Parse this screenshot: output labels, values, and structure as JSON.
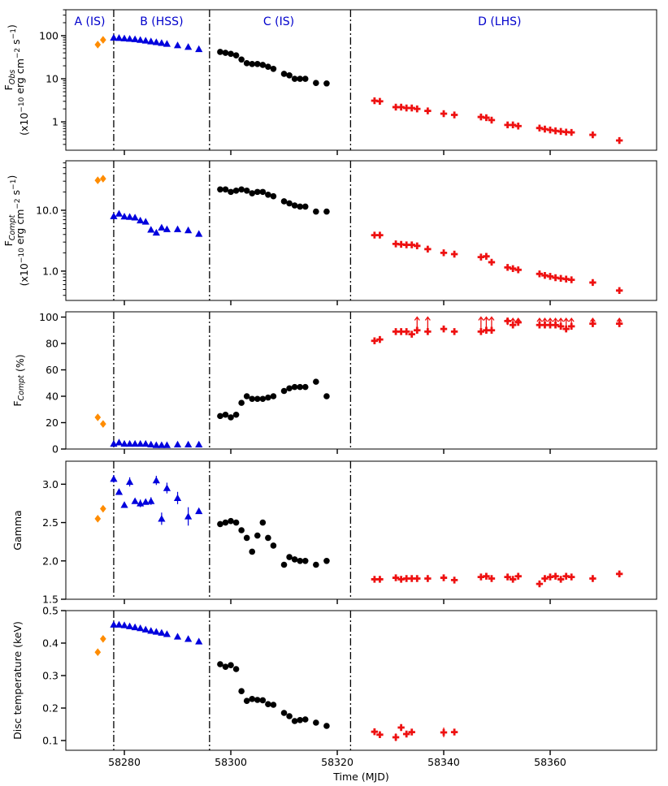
{
  "figure": {
    "xlabel": "Time (MJD)",
    "xlim": [
      58269,
      58380
    ],
    "xticks": [
      58280,
      58300,
      58320,
      58340,
      58360
    ],
    "state_boundaries": [
      58278,
      58296,
      58322.5
    ],
    "state_labels": [
      {
        "text": "A (IS)",
        "x": 58273.5
      },
      {
        "text": "B (HSS)",
        "x": 58287
      },
      {
        "text": "C (IS)",
        "x": 58309
      },
      {
        "text": "D (LHS)",
        "x": 58350.5
      }
    ],
    "colors": {
      "A": "#ff8c00",
      "B": "#0000dd",
      "C": "#000000",
      "D": "#ee1111",
      "label": "#0000cc"
    }
  },
  "chart_data": [
    {
      "id": "fobs",
      "type": "scatter",
      "yscale": "log",
      "ylim": [
        0.22,
        400
      ],
      "ylabel_lines": [
        "F<sub>Obs</sub>",
        "(x10<sup>−10</sup> erg cm<sup>−2</sup> s<sup>−1</sup>)"
      ],
      "ylabel_text": [
        "FObs",
        "(x10−10 erg cm−2 s−1)"
      ],
      "yticks": [
        1,
        10,
        100
      ],
      "yticklabels": [
        "1",
        "10",
        "100"
      ],
      "series": [
        {
          "name": "A (IS)",
          "marker": "diamond",
          "x": [
            58275,
            58276
          ],
          "y": [
            62,
            80
          ]
        },
        {
          "name": "B (HSS)",
          "marker": "triangle",
          "x": [
            58278,
            58279,
            58280,
            58281,
            58282,
            58283,
            58284,
            58285,
            58286,
            58287,
            58288,
            58290,
            58292,
            58294
          ],
          "y": [
            90,
            89,
            87,
            85,
            83,
            80,
            77,
            74,
            71,
            68,
            65,
            60,
            55,
            49
          ]
        },
        {
          "name": "C (IS)",
          "marker": "circle",
          "x": [
            58298,
            58299,
            58300,
            58301,
            58302,
            58303,
            58304,
            58305,
            58306,
            58307,
            58308,
            58310,
            58311,
            58312,
            58313,
            58314,
            58316,
            58318
          ],
          "y": [
            42,
            40,
            38,
            35,
            28,
            23,
            22,
            22,
            21,
            19,
            17,
            13,
            12,
            10,
            10,
            10,
            8,
            7.8
          ]
        },
        {
          "name": "D (LHS)",
          "marker": "plus",
          "x": [
            58327,
            58328,
            58331,
            58332,
            58333,
            58334,
            58335,
            58337,
            58340,
            58342,
            58347,
            58348,
            58349,
            58352,
            58353,
            58354,
            58358,
            58359,
            58360,
            58361,
            58362,
            58363,
            58364,
            58368,
            58373
          ],
          "y": [
            3.1,
            3.0,
            2.2,
            2.2,
            2.1,
            2.1,
            2.0,
            1.8,
            1.55,
            1.45,
            1.3,
            1.25,
            1.1,
            0.85,
            0.85,
            0.8,
            0.72,
            0.68,
            0.65,
            0.62,
            0.6,
            0.58,
            0.57,
            0.5,
            0.37
          ]
        }
      ],
      "yerr": []
    },
    {
      "id": "fcompt",
      "type": "scatter",
      "yscale": "log",
      "ylim": [
        0.33,
        65
      ],
      "ylabel_lines": [
        "F<sub>Compt</sub>",
        "(x10<sup>−10</sup> erg cm<sup>−2</sup> s<sup>−1</sup>)"
      ],
      "ylabel_text": [
        "FCompt",
        "(x10−10 erg cm−2 s−1)"
      ],
      "yticks": [
        1,
        10
      ],
      "yticklabels": [
        "1.0",
        "10.0"
      ],
      "series": [
        {
          "name": "A (IS)",
          "marker": "diamond",
          "x": [
            58275,
            58276
          ],
          "y": [
            31,
            33
          ]
        },
        {
          "name": "B (HSS)",
          "marker": "triangle",
          "x": [
            58278,
            58279,
            58280,
            58281,
            58282,
            58283,
            58284,
            58285,
            58286,
            58287,
            58288,
            58290,
            58292,
            58294
          ],
          "y": [
            8.0,
            8.8,
            7.9,
            7.8,
            7.6,
            6.8,
            6.5,
            4.8,
            4.3,
            5.2,
            4.9,
            4.9,
            4.7,
            4.1
          ]
        },
        {
          "name": "C (IS)",
          "marker": "circle",
          "x": [
            58298,
            58299,
            58300,
            58301,
            58302,
            58303,
            58304,
            58305,
            58306,
            58307,
            58308,
            58310,
            58311,
            58312,
            58313,
            58314,
            58316,
            58318
          ],
          "y": [
            22,
            22,
            20,
            21,
            22,
            21,
            19,
            20,
            20,
            18,
            17,
            14,
            13,
            12,
            11.5,
            11.5,
            9.5,
            9.5
          ]
        },
        {
          "name": "D (LHS)",
          "marker": "plus",
          "x": [
            58327,
            58328,
            58331,
            58332,
            58333,
            58334,
            58335,
            58337,
            58340,
            58342,
            58347,
            58348,
            58349,
            58352,
            58353,
            58354,
            58358,
            58359,
            58360,
            58361,
            58362,
            58363,
            58364,
            58368,
            58373
          ],
          "y": [
            3.9,
            3.9,
            2.8,
            2.75,
            2.7,
            2.7,
            2.6,
            2.3,
            2.0,
            1.9,
            1.7,
            1.75,
            1.4,
            1.15,
            1.1,
            1.05,
            0.9,
            0.85,
            0.82,
            0.78,
            0.76,
            0.74,
            0.72,
            0.65,
            0.48
          ]
        }
      ],
      "yerr": []
    },
    {
      "id": "fcompt_pct",
      "type": "scatter",
      "yscale": "linear",
      "ylim": [
        0,
        104
      ],
      "ylabel_lines": [
        "F<sub>Compt</sub> (%)"
      ],
      "ylabel_text": [
        "FCompt (%)"
      ],
      "yticks": [
        0,
        20,
        40,
        60,
        80,
        100
      ],
      "yticklabels": [
        "0",
        "20",
        "40",
        "60",
        "80",
        "100"
      ],
      "series": [
        {
          "name": "A (IS)",
          "marker": "diamond",
          "x": [
            58275,
            58276
          ],
          "y": [
            24,
            19
          ]
        },
        {
          "name": "B (HSS)",
          "marker": "triangle",
          "x": [
            58278,
            58279,
            58280,
            58281,
            58282,
            58283,
            58284,
            58285,
            58286,
            58287,
            58288,
            58290,
            58292,
            58294
          ],
          "y": [
            4,
            5,
            4,
            4,
            4,
            4,
            4,
            3.5,
            3,
            3,
            3,
            3.5,
            3.5,
            3.5
          ]
        },
        {
          "name": "C (IS)",
          "marker": "circle",
          "x": [
            58298,
            58299,
            58300,
            58301,
            58302,
            58303,
            58304,
            58305,
            58306,
            58307,
            58308,
            58310,
            58311,
            58312,
            58313,
            58314,
            58316,
            58318
          ],
          "y": [
            25,
            26,
            24,
            26,
            35,
            40,
            38,
            38,
            38,
            39,
            40,
            44,
            46,
            47,
            47,
            47,
            51,
            40
          ]
        },
        {
          "name": "D (LHS)",
          "marker": "plus",
          "x": [
            58327,
            58328,
            58331,
            58332,
            58333,
            58334,
            58335,
            58337,
            58340,
            58342,
            58347,
            58348,
            58349,
            58352,
            58353,
            58354,
            58358,
            58359,
            58360,
            58361,
            58362,
            58363,
            58364,
            58368,
            58373
          ],
          "y": [
            82,
            83,
            89,
            89,
            89,
            87,
            90,
            89,
            91,
            89,
            89,
            90,
            90,
            97,
            94,
            96,
            94,
            94,
            94,
            94,
            93,
            91,
            93,
            95,
            95
          ]
        }
      ],
      "lower_limits": {
        "x": [
          58335,
          58337,
          58347,
          58348,
          58349,
          58352,
          58353,
          58354,
          58358,
          58359,
          58360,
          58361,
          58362,
          58363,
          58364,
          58368,
          58373
        ],
        "y_low": [
          90,
          89,
          89,
          90,
          90,
          94,
          94,
          95,
          94,
          94,
          94,
          94,
          93,
          91,
          93,
          95,
          95
        ],
        "y_high": [
          100,
          100,
          100,
          100,
          100,
          99,
          99,
          99,
          99,
          99,
          99,
          99,
          99,
          99,
          99,
          99,
          99
        ]
      },
      "yerr": []
    },
    {
      "id": "gamma",
      "type": "scatter",
      "yscale": "linear",
      "ylim": [
        1.5,
        3.3
      ],
      "ylabel_lines": [
        "Gamma"
      ],
      "ylabel_text": [
        "Gamma"
      ],
      "yticks": [
        1.5,
        2.0,
        2.5,
        3.0
      ],
      "yticklabels": [
        "1.5",
        "2.0",
        "2.5",
        "3.0"
      ],
      "series": [
        {
          "name": "A (IS)",
          "marker": "diamond",
          "x": [
            58275,
            58276
          ],
          "y": [
            2.55,
            2.68
          ]
        },
        {
          "name": "B (HSS)",
          "marker": "triangle",
          "x": [
            58278,
            58279,
            58280,
            58281,
            58282,
            58283,
            58284,
            58285,
            58286,
            58287,
            58288,
            58290,
            58292,
            58294
          ],
          "y": [
            3.07,
            2.9,
            2.73,
            3.03,
            2.78,
            2.75,
            2.77,
            2.78,
            3.05,
            2.55,
            2.95,
            2.82,
            2.58,
            2.65
          ]
        },
        {
          "name": "C (IS)",
          "marker": "circle",
          "x": [
            58298,
            58299,
            58300,
            58301,
            58302,
            58303,
            58304,
            58305,
            58306,
            58307,
            58308,
            58310,
            58311,
            58312,
            58313,
            58314,
            58316,
            58318
          ],
          "y": [
            2.48,
            2.5,
            2.52,
            2.5,
            2.4,
            2.3,
            2.12,
            2.33,
            2.5,
            2.3,
            2.2,
            1.95,
            2.05,
            2.02,
            2.0,
            2.0,
            1.95,
            2.0
          ]
        },
        {
          "name": "D (LHS)",
          "marker": "plus",
          "x": [
            58327,
            58328,
            58331,
            58332,
            58333,
            58334,
            58335,
            58337,
            58340,
            58342,
            58347,
            58348,
            58349,
            58352,
            58353,
            58354,
            58358,
            58359,
            58360,
            58361,
            58362,
            58363,
            58364,
            58368,
            58373
          ],
          "y": [
            1.76,
            1.76,
            1.78,
            1.76,
            1.77,
            1.77,
            1.77,
            1.77,
            1.78,
            1.75,
            1.79,
            1.8,
            1.77,
            1.79,
            1.76,
            1.8,
            1.7,
            1.77,
            1.79,
            1.8,
            1.76,
            1.8,
            1.79,
            1.77,
            1.83
          ]
        }
      ],
      "yerr": [
        {
          "x": 58278,
          "y": 3.07,
          "e": 0.05
        },
        {
          "x": 58281,
          "y": 3.03,
          "e": 0.06
        },
        {
          "x": 58283,
          "y": 2.75,
          "e": 0.05
        },
        {
          "x": 58285,
          "y": 2.78,
          "e": 0.05
        },
        {
          "x": 58286,
          "y": 3.05,
          "e": 0.06
        },
        {
          "x": 58287,
          "y": 2.55,
          "e": 0.08
        },
        {
          "x": 58288,
          "y": 2.95,
          "e": 0.07
        },
        {
          "x": 58290,
          "y": 2.82,
          "e": 0.08
        },
        {
          "x": 58292,
          "y": 2.58,
          "e": 0.12
        },
        {
          "x": 58358,
          "y": 1.7,
          "e": 0.04
        }
      ]
    },
    {
      "id": "disc_temp",
      "type": "scatter",
      "yscale": "linear",
      "ylim": [
        0.07,
        0.5
      ],
      "ylabel_lines": [
        "Disc temperature (keV)"
      ],
      "ylabel_text": [
        "Disc temperature (keV)"
      ],
      "yticks": [
        0.1,
        0.2,
        0.3,
        0.4,
        0.5
      ],
      "yticklabels": [
        "0.1",
        "0.2",
        "0.3",
        "0.4",
        "0.5"
      ],
      "series": [
        {
          "name": "A (IS)",
          "marker": "diamond",
          "x": [
            58275,
            58276
          ],
          "y": [
            0.372,
            0.413
          ]
        },
        {
          "name": "B (HSS)",
          "marker": "triangle",
          "x": [
            58278,
            58279,
            58280,
            58281,
            58282,
            58283,
            58284,
            58285,
            58286,
            58287,
            58288,
            58290,
            58292,
            58294
          ],
          "y": [
            0.457,
            0.457,
            0.455,
            0.452,
            0.449,
            0.446,
            0.442,
            0.438,
            0.435,
            0.432,
            0.428,
            0.42,
            0.413,
            0.405
          ]
        },
        {
          "name": "C (IS)",
          "marker": "circle",
          "x": [
            58298,
            58299,
            58300,
            58301,
            58302,
            58303,
            58304,
            58305,
            58306,
            58307,
            58308,
            58310,
            58311,
            58312,
            58313,
            58314,
            58316,
            58318
          ],
          "y": [
            0.335,
            0.327,
            0.332,
            0.32,
            0.252,
            0.222,
            0.228,
            0.225,
            0.224,
            0.212,
            0.21,
            0.185,
            0.175,
            0.16,
            0.163,
            0.165,
            0.155,
            0.145
          ]
        },
        {
          "name": "D (LHS)",
          "marker": "plus",
          "x": [
            58327,
            58328,
            58331,
            58332,
            58333,
            58334,
            58340,
            58342
          ],
          "y": [
            0.127,
            0.118,
            0.11,
            0.14,
            0.12,
            0.126,
            0.125,
            0.126
          ]
        }
      ],
      "yerr": [
        {
          "x": 58331,
          "y": 0.11,
          "e": 0.012
        },
        {
          "x": 58340,
          "y": 0.125,
          "e": 0.015
        }
      ]
    }
  ]
}
